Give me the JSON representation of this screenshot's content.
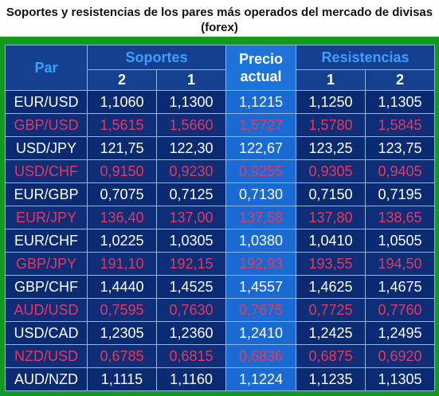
{
  "title": "Soportes y resistencias de los pares más operados del mercado de divisas (forex)",
  "colors": {
    "frame": "#119a1d",
    "header_bg": "#153f8f",
    "body_bg": "#0a2b72",
    "precio_bg": "#1a6ad4",
    "white_text": "#ffffff",
    "red_text": "#e8365f",
    "blue_header_text": "#3aa0ff"
  },
  "header": {
    "par": "Par",
    "soportes": "Soportes",
    "precio_line1": "Precio",
    "precio_line2": "actual",
    "resistencias": "Resistencias",
    "s2": "2",
    "s1": "1",
    "r1": "1",
    "r2": "2"
  },
  "rows": [
    {
      "pair": "EUR/USD",
      "s2": "1,1060",
      "s1": "1,1300",
      "precio": "1,1215",
      "r1": "1,1250",
      "r2": "1,1305",
      "style": "white"
    },
    {
      "pair": "GBP/USD",
      "s2": "1,5615",
      "s1": "1,5660",
      "precio": "1,5727",
      "r1": "1,5780",
      "r2": "1,5845",
      "style": "red"
    },
    {
      "pair": "USD/JPY",
      "s2": "121,75",
      "s1": "122,30",
      "precio": "122,67",
      "r1": "123,25",
      "r2": "123,75",
      "style": "white"
    },
    {
      "pair": "USD/CHF",
      "s2": "0,9150",
      "s1": "0,9230",
      "precio": "0,9255",
      "r1": "0,9305",
      "r2": "0,9405",
      "style": "red"
    },
    {
      "pair": "EUR/GBP",
      "s2": "0,7075",
      "s1": "0,7125",
      "precio": "0,7130",
      "r1": "0,7150",
      "r2": "0,7195",
      "style": "white"
    },
    {
      "pair": "EUR/JPY",
      "s2": "136,40",
      "s1": "137,00",
      "precio": "137,58",
      "r1": "137,80",
      "r2": "138,65",
      "style": "red"
    },
    {
      "pair": "EUR/CHF",
      "s2": "1,0225",
      "s1": "1,0305",
      "precio": "1,0380",
      "r1": "1,0410",
      "r2": "1,0505",
      "style": "white"
    },
    {
      "pair": "GBP/JPY",
      "s2": "191,10",
      "s1": "192,15",
      "precio": "192,93",
      "r1": "193,55",
      "r2": "194,50",
      "style": "red"
    },
    {
      "pair": "GBP/CHF",
      "s2": "1,4440",
      "s1": "1,4525",
      "precio": "1,4557",
      "r1": "1,4625",
      "r2": "1,4675",
      "style": "white"
    },
    {
      "pair": "AUD/USD",
      "s2": "0,7595",
      "s1": "0,7630",
      "precio": "0,7675",
      "r1": "0,7725",
      "r2": "0,7760",
      "style": "red"
    },
    {
      "pair": "USD/CAD",
      "s2": "1,2305",
      "s1": "1,2360",
      "precio": "1,2410",
      "r1": "1,2425",
      "r2": "1,2495",
      "style": "white"
    },
    {
      "pair": "NZD/USD",
      "s2": "0,6785",
      "s1": "0,6815",
      "precio": "0,6836",
      "r1": "0,6875",
      "r2": "0,6920",
      "style": "red"
    },
    {
      "pair": "AUD/NZD",
      "s2": "1,1115",
      "s1": "1,1160",
      "precio": "1,1224",
      "r1": "1,1235",
      "r2": "1,1305",
      "style": "white"
    }
  ]
}
